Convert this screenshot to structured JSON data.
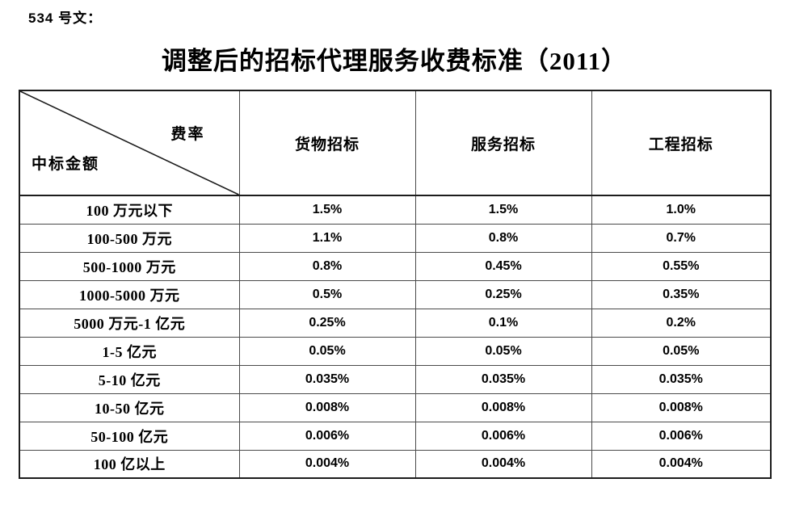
{
  "page": {
    "doc_label": "534 号文：",
    "title": "调整后的招标代理服务收费标准（2011）"
  },
  "table": {
    "corner": {
      "top_right_label": "费率",
      "bottom_left_label": "中标金额"
    },
    "columns": [
      "货物招标",
      "服务招标",
      "工程招标"
    ],
    "rows": [
      {
        "amount": "100 万元以下",
        "rates": [
          "1.5%",
          "1.5%",
          "1.0%"
        ]
      },
      {
        "amount": "100-500 万元",
        "rates": [
          "1.1%",
          "0.8%",
          "0.7%"
        ]
      },
      {
        "amount": "500-1000 万元",
        "rates": [
          "0.8%",
          "0.45%",
          "0.55%"
        ]
      },
      {
        "amount": "1000-5000 万元",
        "rates": [
          "0.5%",
          "0.25%",
          "0.35%"
        ]
      },
      {
        "amount": "5000 万元-1 亿元",
        "rates": [
          "0.25%",
          "0.1%",
          "0.2%"
        ]
      },
      {
        "amount": "1-5 亿元",
        "rates": [
          "0.05%",
          "0.05%",
          "0.05%"
        ]
      },
      {
        "amount": "5-10 亿元",
        "rates": [
          "0.035%",
          "0.035%",
          "0.035%"
        ]
      },
      {
        "amount": "10-50 亿元",
        "rates": [
          "0.008%",
          "0.008%",
          "0.008%"
        ]
      },
      {
        "amount": "50-100 亿元",
        "rates": [
          "0.006%",
          "0.006%",
          "0.006%"
        ]
      },
      {
        "amount": "100 亿以上",
        "rates": [
          "0.004%",
          "0.004%",
          "0.004%"
        ]
      }
    ]
  },
  "colors": {
    "outer_border": "#1c1c1c",
    "inner_border": "#4a4a4a",
    "text": "#000000",
    "background": "#ffffff"
  }
}
